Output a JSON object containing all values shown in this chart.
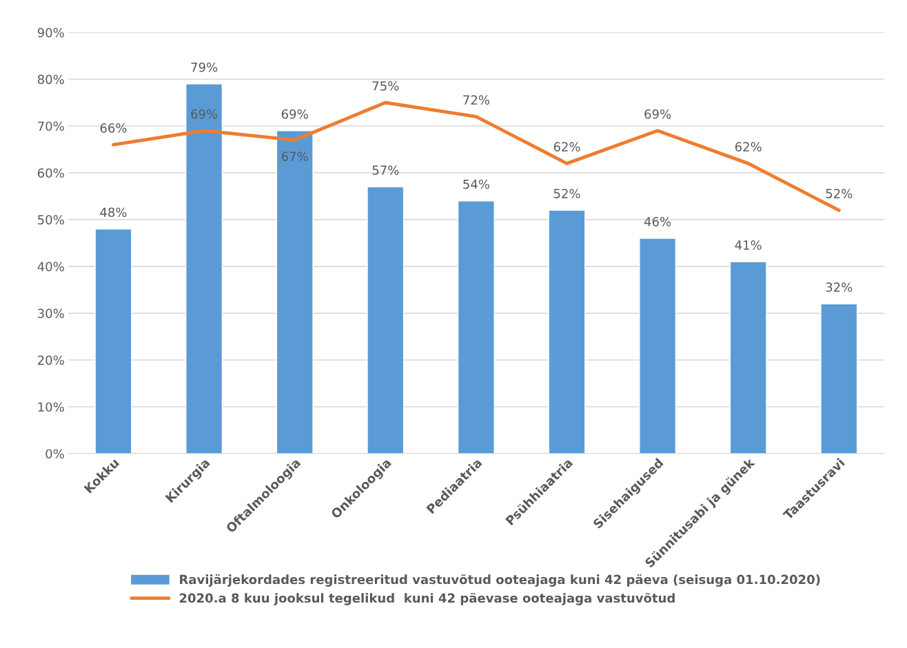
{
  "chart_data": {
    "type": "bar",
    "categories": [
      "Kokku",
      "Kirurgia",
      "Oftalmoloogia",
      "Onkoloogia",
      "Pediaatria",
      "Psühhiaatria",
      "Sisehaigused",
      "Sünnitusabi ja günek",
      "Taastusravi"
    ],
    "series": [
      {
        "name": "Ravijärjekordades registreeritud vastuvõtud ooteajaga kuni 42 päeva (seisuga 01.10.2020)",
        "color": "#5b9bd5",
        "values": [
          48,
          79,
          69,
          57,
          54,
          52,
          46,
          41,
          32
        ],
        "value_labels": [
          "48%",
          "79%",
          "69%",
          "57%",
          "54%",
          "52%",
          "46%",
          "41%",
          "32%"
        ]
      },
      {
        "name": "2020.a 8 kuu jooksul tegelikud  kuni 42 päevase ooteajaga vastuvõtud",
        "type": "line",
        "color": "#ed7d31",
        "marker": "none",
        "values": [
          66,
          69,
          67,
          75,
          72,
          62,
          69,
          62,
          52
        ],
        "value_labels": [
          "66%",
          "69%",
          "67%",
          "75%",
          "72%",
          "62%",
          "69%",
          "62%",
          "52%"
        ]
      }
    ],
    "ylim": [
      0,
      90
    ],
    "yticks": [
      {
        "value": 0,
        "label": "0%"
      },
      {
        "value": 10,
        "label": "10%"
      },
      {
        "value": 20,
        "label": "20%"
      },
      {
        "value": 30,
        "label": "30%"
      },
      {
        "value": 40,
        "label": "40%"
      },
      {
        "value": 50,
        "label": "50%"
      },
      {
        "value": 60,
        "label": "60%"
      },
      {
        "value": 70,
        "label": "70%"
      },
      {
        "value": 80,
        "label": "80%"
      },
      {
        "value": 90,
        "label": "90%"
      }
    ],
    "grid": "y",
    "legend": "bottom"
  }
}
